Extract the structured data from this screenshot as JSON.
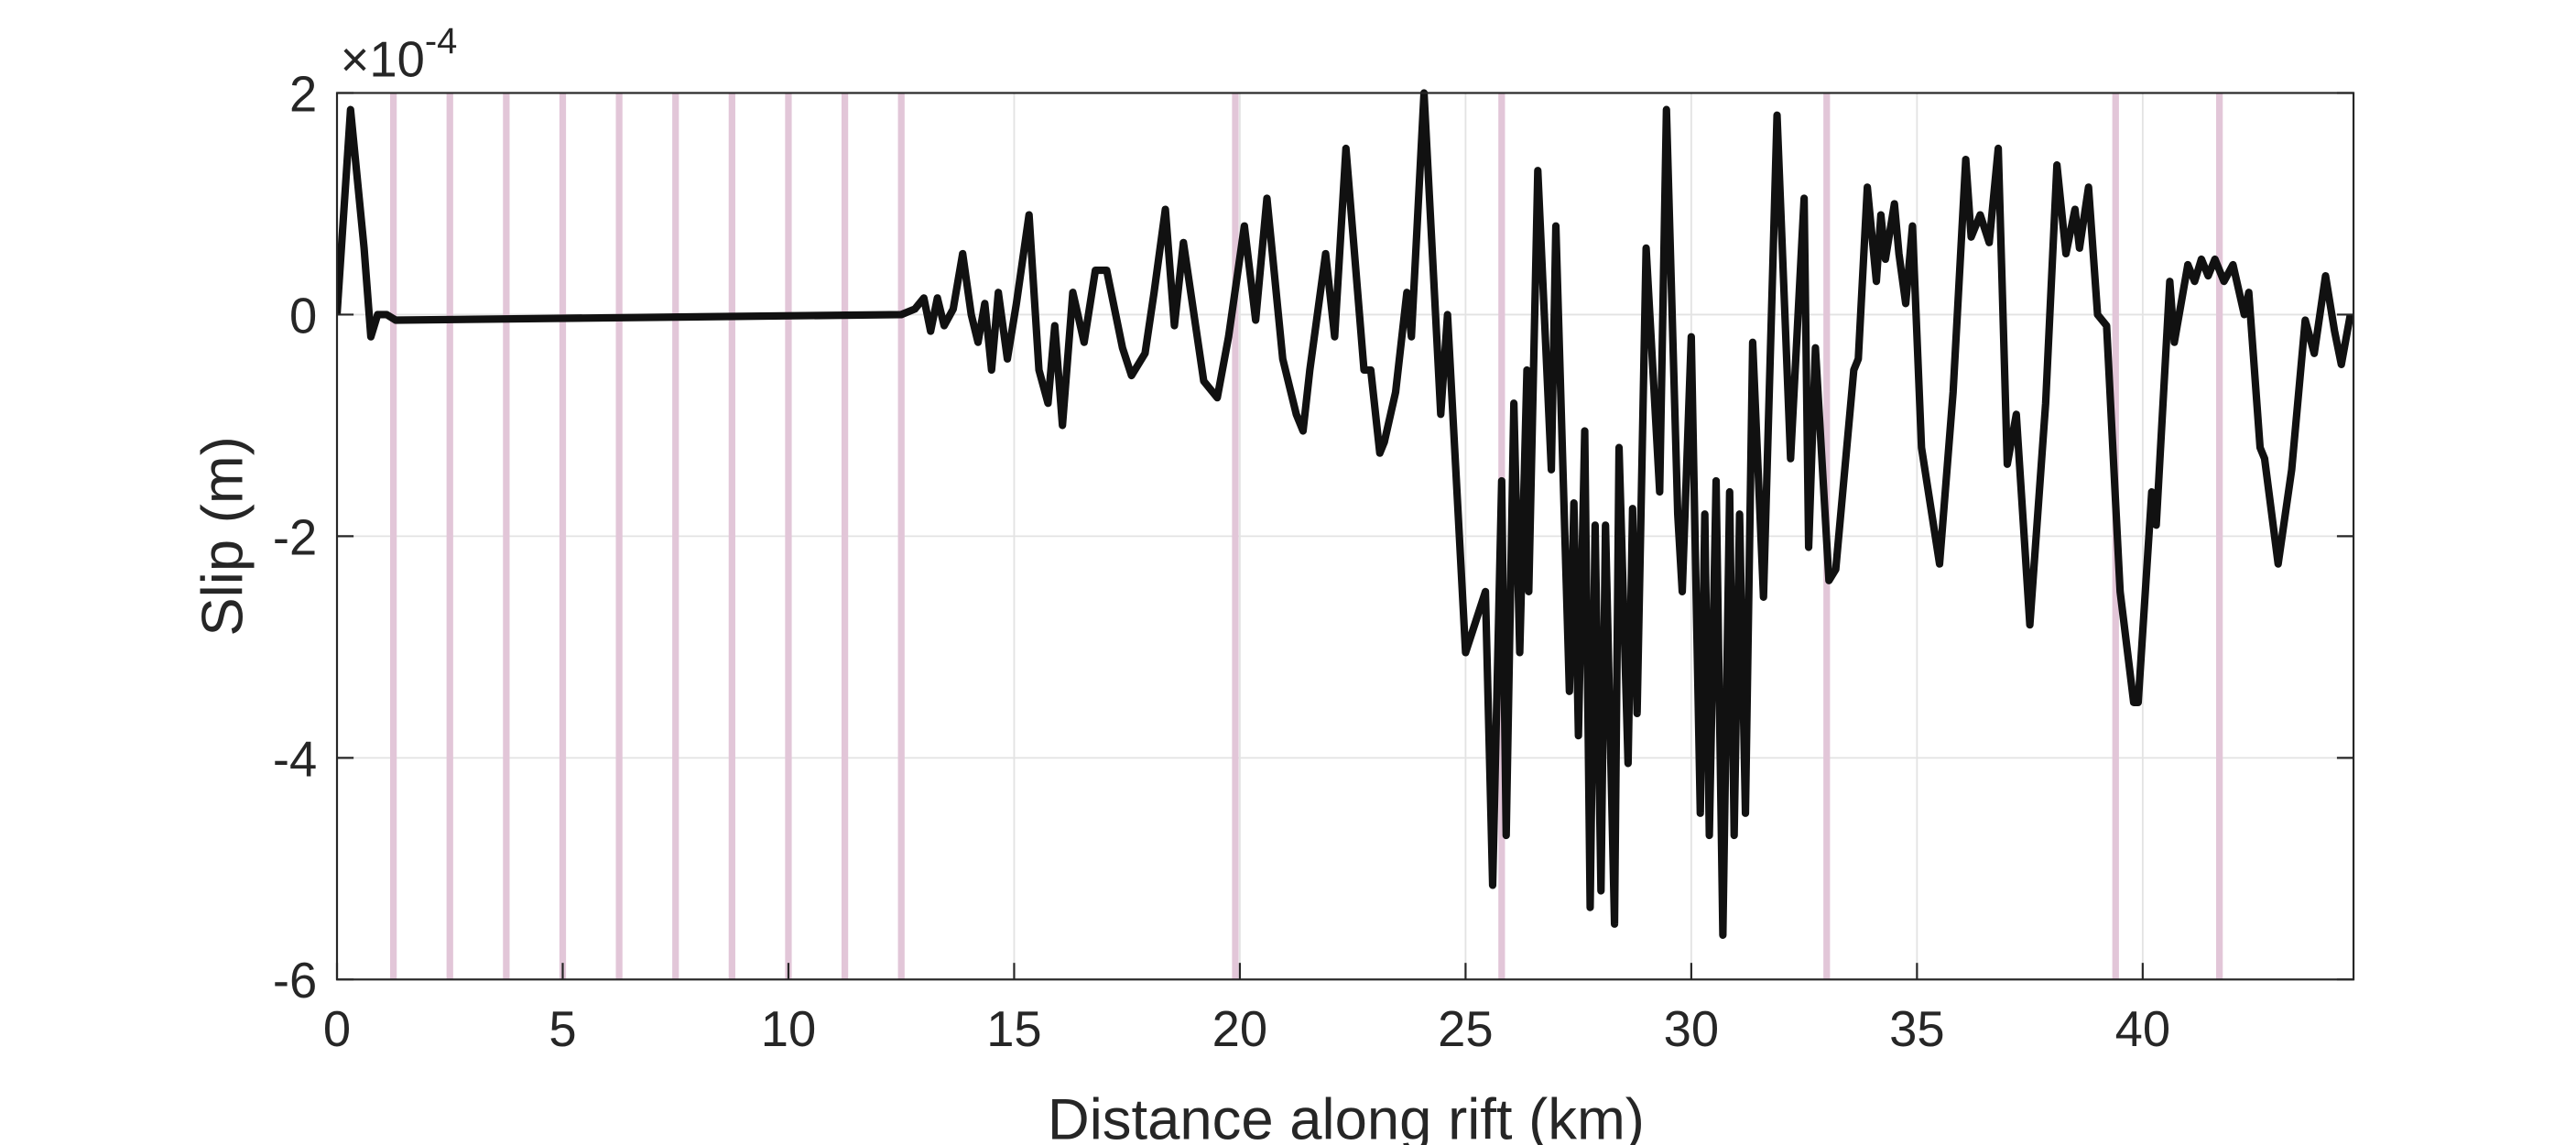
{
  "chart_data": {
    "type": "line",
    "xlabel": "Distance along rift (km)",
    "ylabel": "Slip (m)",
    "y_multiplier": {
      "base": "×10",
      "exponent": "-4"
    },
    "xlim": [
      0,
      44.67
    ],
    "ylim": [
      -6,
      2
    ],
    "xticks": [
      0,
      5,
      10,
      15,
      20,
      25,
      30,
      35,
      40
    ],
    "yticks": [
      -6,
      -4,
      -2,
      0,
      2
    ],
    "grid": true,
    "color": "#111111",
    "highlight_color": "#e2c6d8",
    "highlight_x": [
      1.25,
      2.5,
      3.75,
      5,
      6.25,
      7.5,
      8.75,
      10,
      11.25,
      12.5,
      19.9,
      25.8,
      33.0,
      39.4,
      41.7
    ],
    "x": [
      0,
      0.3,
      0.6,
      0.75,
      0.9,
      1.1,
      1.3,
      12.5,
      12.8,
      13.0,
      13.15,
      13.3,
      13.45,
      13.65,
      13.86,
      14.05,
      14.2,
      14.35,
      14.5,
      14.65,
      14.85,
      15.05,
      15.33,
      15.55,
      15.75,
      15.9,
      16.07,
      16.3,
      16.55,
      16.8,
      17.05,
      17.4,
      17.6,
      17.9,
      18.1,
      18.35,
      18.55,
      18.75,
      19.2,
      19.5,
      19.75,
      20.1,
      20.35,
      20.6,
      20.95,
      21.25,
      21.4,
      21.55,
      21.9,
      22.1,
      22.35,
      22.75,
      22.9,
      23.1,
      23.2,
      23.45,
      23.7,
      23.8,
      24.08,
      24.45,
      24.6,
      25.0,
      25.44,
      25.6,
      25.8,
      25.9,
      26.07,
      26.2,
      26.36,
      26.4,
      26.6,
      26.9,
      27.0,
      27.3,
      27.4,
      27.5,
      27.64,
      27.76,
      27.87,
      28.0,
      28.1,
      28.3,
      28.4,
      28.6,
      28.7,
      28.8,
      29.0,
      29.3,
      29.45,
      29.7,
      29.8,
      30.0,
      30.2,
      30.3,
      30.4,
      30.55,
      30.7,
      30.85,
      30.95,
      31.07,
      31.2,
      31.36,
      31.6,
      31.9,
      32.2,
      32.5,
      32.6,
      32.75,
      33.05,
      33.2,
      33.4,
      33.6,
      33.7,
      33.9,
      34.1,
      34.2,
      34.3,
      34.5,
      34.6,
      34.75,
      34.9,
      35.1,
      35.5,
      35.8,
      36.08,
      36.2,
      36.4,
      36.6,
      36.8,
      37.0,
      37.2,
      37.5,
      37.85,
      38.1,
      38.3,
      38.5,
      38.6,
      38.8,
      39.0,
      39.2,
      39.5,
      39.8,
      39.9,
      40.2,
      40.3,
      40.6,
      40.7,
      41.0,
      41.15,
      41.3,
      41.45,
      41.6,
      41.8,
      42.0,
      42.25,
      42.35,
      42.6,
      42.7,
      43.0,
      43.3,
      43.6,
      43.8,
      44.05,
      44.25,
      44.4,
      44.6
    ],
    "values": [
      0,
      1.85,
      0.6,
      -0.2,
      0,
      0,
      -0.05,
      0,
      0.05,
      0.15,
      -0.15,
      0.15,
      -0.1,
      0.05,
      0.55,
      0,
      -0.25,
      0.1,
      -0.5,
      0.2,
      -0.4,
      0.1,
      0.9,
      -0.5,
      -0.8,
      -0.1,
      -1.0,
      0.2,
      -0.25,
      0.4,
      0.4,
      -0.3,
      -0.55,
      -0.35,
      0.2,
      0.95,
      -0.1,
      0.65,
      -0.6,
      -0.75,
      -0.2,
      0.8,
      -0.05,
      1.05,
      -0.4,
      -0.9,
      -1.05,
      -0.5,
      0.55,
      -0.2,
      1.5,
      -0.5,
      -0.5,
      -1.25,
      -1.15,
      -0.7,
      0.2,
      -0.2,
      2.0,
      -0.9,
      0,
      -3.05,
      -2.5,
      -5.15,
      -1.5,
      -4.7,
      -0.8,
      -3.05,
      -0.5,
      -2.5,
      1.3,
      -1.4,
      0.8,
      -3.4,
      -1.7,
      -3.8,
      -1.05,
      -5.35,
      -1.9,
      -5.2,
      -1.9,
      -5.5,
      -1.2,
      -4.05,
      -1.75,
      -3.6,
      0.6,
      -1.6,
      1.85,
      -1.8,
      -2.5,
      -0.2,
      -4.5,
      -1.8,
      -4.7,
      -1.5,
      -5.6,
      -1.6,
      -4.7,
      -1.8,
      -4.5,
      -0.25,
      -2.55,
      1.8,
      -1.3,
      1.05,
      -2.1,
      -0.3,
      -2.4,
      -2.3,
      -1.4,
      -0.5,
      -0.4,
      1.15,
      0.3,
      0.9,
      0.5,
      1.0,
      0.55,
      0.1,
      0.8,
      -1.2,
      -2.25,
      -0.7,
      1.4,
      0.7,
      0.9,
      0.65,
      1.5,
      -1.35,
      -0.9,
      -2.8,
      -0.8,
      1.35,
      0.55,
      0.95,
      0.6,
      1.15,
      0,
      -0.1,
      -2.5,
      -3.5,
      -3.5,
      -1.6,
      -1.9,
      0.3,
      -0.25,
      0.45,
      0.3,
      0.5,
      0.35,
      0.5,
      0.3,
      0.45,
      0,
      0.2,
      -1.2,
      -1.3,
      -2.25,
      -1.4,
      -0.05,
      -0.35,
      0.35,
      -0.15,
      -0.45,
      0
    ]
  }
}
